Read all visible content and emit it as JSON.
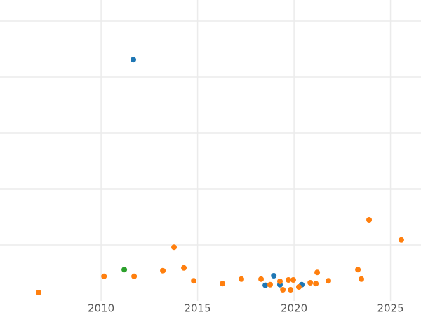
{
  "chart_data": {
    "type": "scatter",
    "xlim": [
      2004.76,
      2026.58
    ],
    "xticks": [
      2010,
      2015,
      2020,
      2025
    ],
    "ylim": [
      0,
      5.375
    ],
    "yticks": [
      1,
      2,
      3,
      4,
      5
    ],
    "grid": true,
    "series": [
      {
        "color": "#1f77b4",
        "x": [
          2011.67,
          2018.95,
          2018.51,
          2019.27,
          2020.4
        ],
        "values": [
          4.31,
          0.45,
          0.28,
          0.29,
          0.29
        ]
      },
      {
        "color": "#2ca02c",
        "x": [
          2011.2
        ],
        "values": [
          0.56
        ]
      },
      {
        "color": "#ff7f0e",
        "x": [
          2006.76,
          2010.15,
          2011.71,
          2013.2,
          2013.78,
          2014.29,
          2014.8,
          2016.29,
          2017.27,
          2018.29,
          2018.76,
          2019.27,
          2019.42,
          2019.71,
          2019.82,
          2019.96,
          2020.25,
          2020.84,
          2021.13,
          2021.2,
          2021.78,
          2023.31,
          2023.49,
          2023.89,
          2025.56
        ],
        "values": [
          0.15,
          0.44,
          0.44,
          0.54,
          0.96,
          0.59,
          0.36,
          0.31,
          0.39,
          0.39,
          0.29,
          0.35,
          0.2,
          0.375,
          0.2,
          0.375,
          0.25,
          0.325,
          0.31,
          0.51,
          0.36,
          0.56,
          0.39,
          1.45,
          1.09
        ]
      }
    ]
  }
}
